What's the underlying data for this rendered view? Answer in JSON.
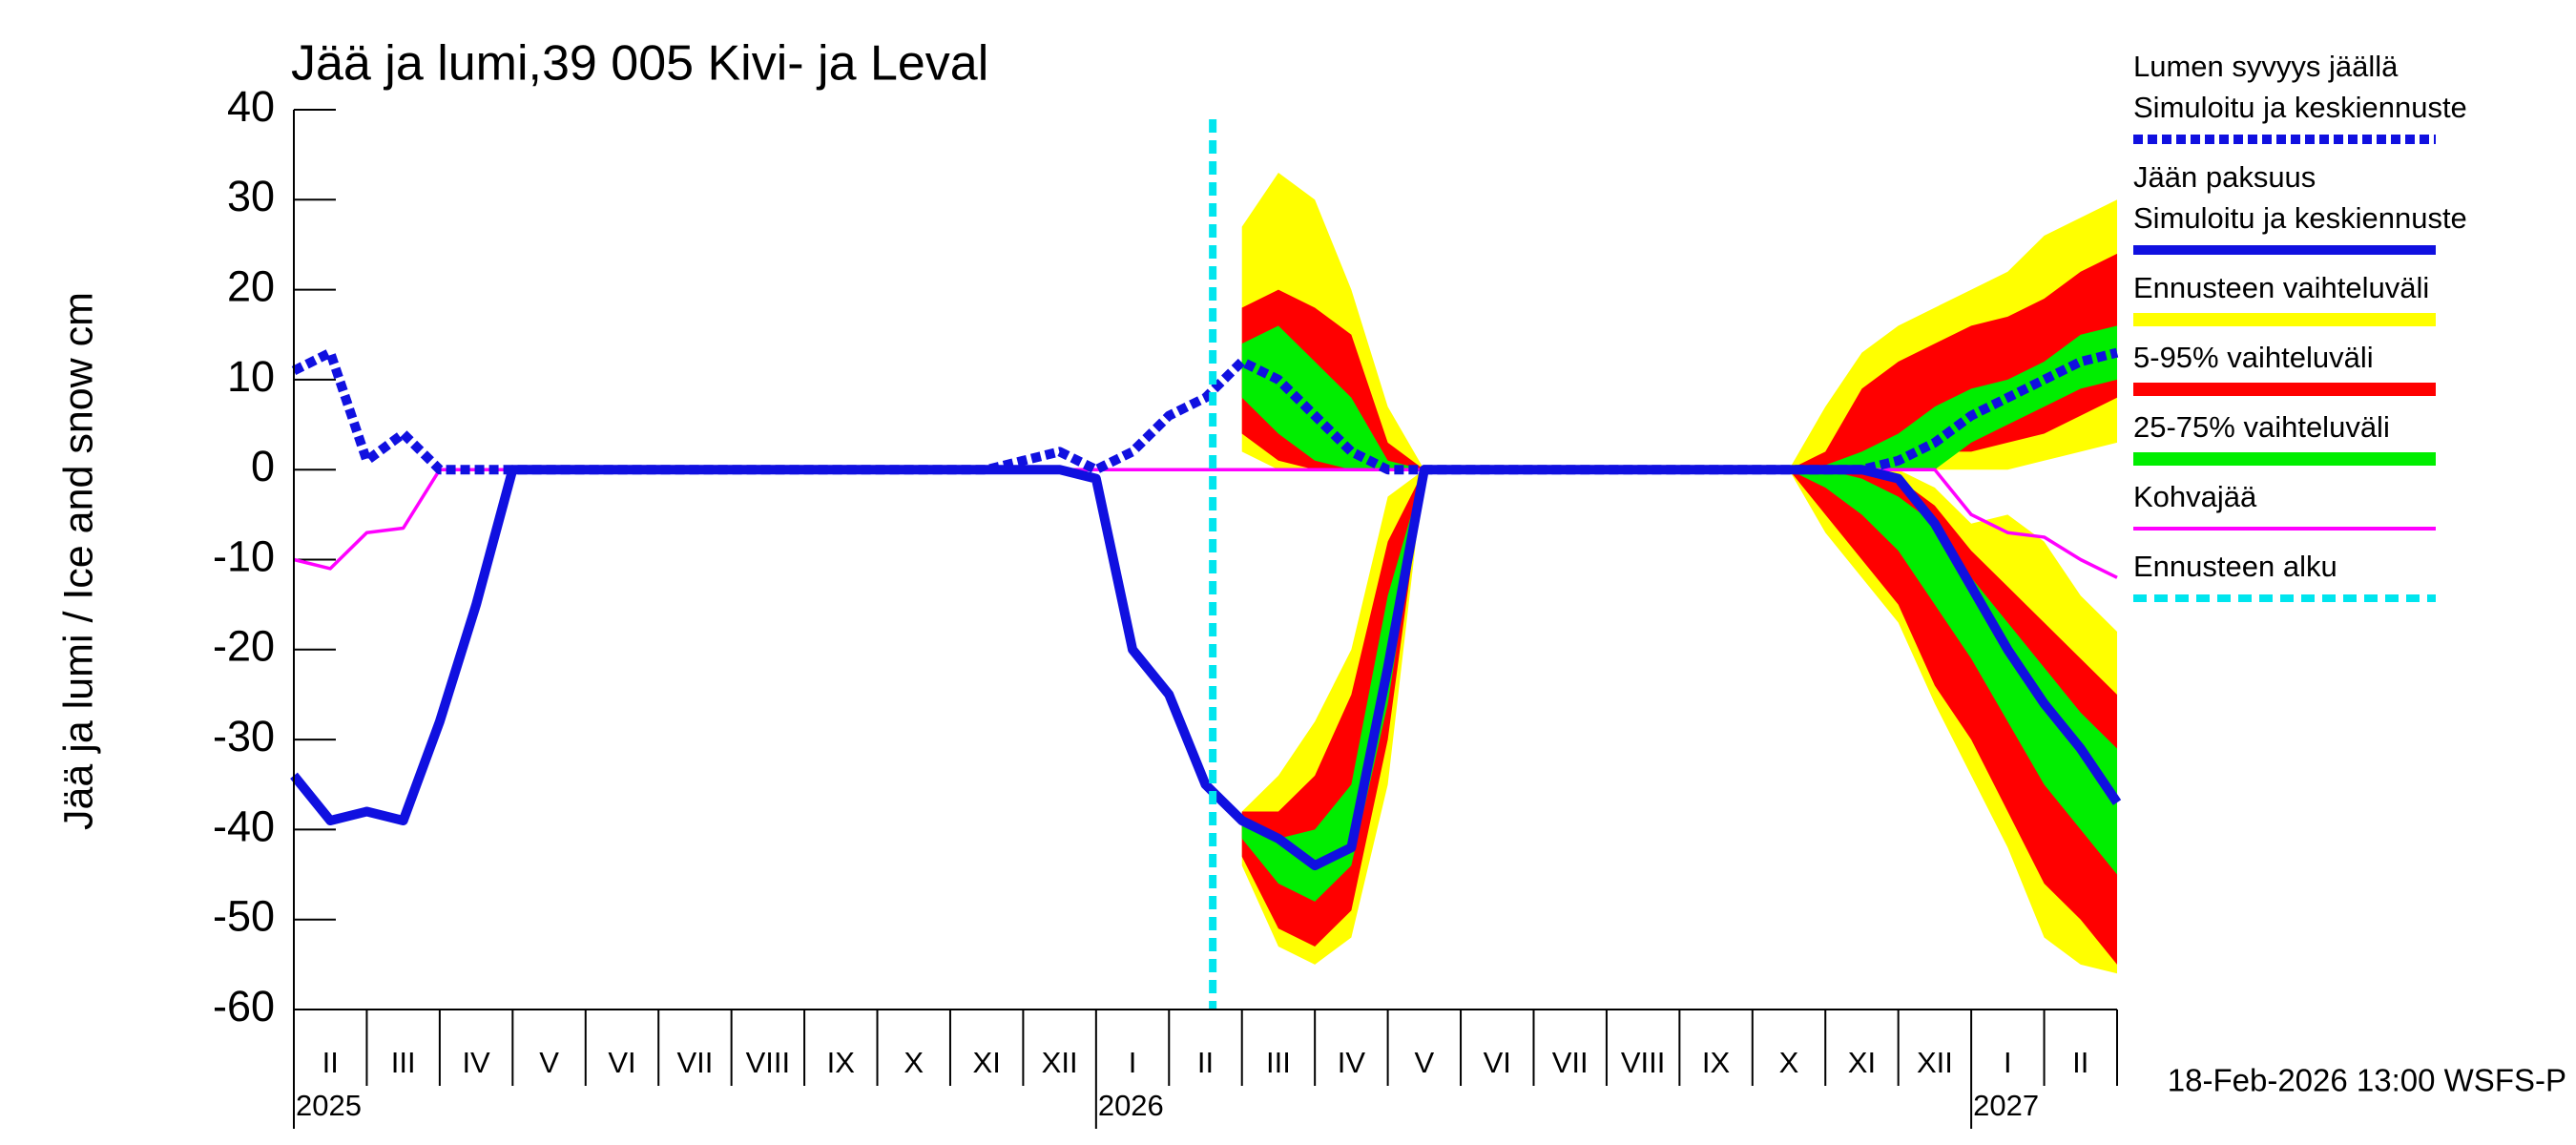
{
  "chart_data": {
    "type": "ice-snow",
    "title": "Jää ja lumi,39 005 Kivi- ja Leval",
    "y_label": "Jää ja lumi / Ice and snow    cm",
    "footer": "18-Feb-2026 13:00 WSFS-P",
    "ylim": [
      -60,
      40
    ],
    "yticks": [
      -60,
      -50,
      -40,
      -30,
      -20,
      -10,
      0,
      10,
      20,
      30,
      40
    ],
    "xlim": [
      0,
      25
    ],
    "categories": [
      "II",
      "III",
      "IV",
      "V",
      "VI",
      "VII",
      "VIII",
      "IX",
      "X",
      "XI",
      "XII",
      "I",
      "II",
      "III",
      "IV",
      "V",
      "VI",
      "VII",
      "VIII",
      "IX",
      "X",
      "XI",
      "XII",
      "I",
      "II"
    ],
    "year_labels": [
      "2025",
      null,
      null,
      null,
      null,
      null,
      null,
      null,
      null,
      null,
      null,
      "2026",
      null,
      null,
      null,
      null,
      null,
      null,
      null,
      null,
      null,
      null,
      null,
      "2027",
      null
    ],
    "x": [
      0,
      0.5,
      1,
      1.5,
      2,
      2.5,
      3,
      3.5,
      4,
      4.5,
      5,
      5.5,
      6,
      6.5,
      7,
      7.5,
      8,
      8.5,
      9,
      9.5,
      10,
      10.5,
      11,
      11.5,
      12,
      12.5,
      13,
      13.5,
      14,
      14.5,
      15,
      15.5,
      16,
      16.5,
      17,
      17.5,
      18,
      18.5,
      19,
      19.5,
      20,
      20.5,
      21,
      21.5,
      22,
      22.5,
      23,
      23.5,
      24,
      24.5,
      25
    ],
    "bands": [
      {
        "name": "Ennusteen vaihteluväli",
        "color": "#ffff00",
        "snow": {
          "low": [
            null,
            null,
            null,
            null,
            null,
            null,
            null,
            null,
            null,
            null,
            null,
            null,
            null,
            null,
            null,
            null,
            null,
            null,
            null,
            null,
            null,
            null,
            null,
            null,
            null,
            null,
            2,
            0,
            0,
            0,
            0,
            0,
            null,
            null,
            null,
            null,
            null,
            null,
            null,
            null,
            null,
            0,
            0,
            0,
            0,
            0,
            0,
            0,
            1,
            2,
            3
          ],
          "high": [
            null,
            null,
            null,
            null,
            null,
            null,
            null,
            null,
            null,
            null,
            null,
            null,
            null,
            null,
            null,
            null,
            null,
            null,
            null,
            null,
            null,
            null,
            null,
            null,
            null,
            null,
            27,
            33,
            30,
            20,
            7,
            0,
            null,
            null,
            null,
            null,
            null,
            null,
            null,
            null,
            null,
            0,
            7,
            13,
            16,
            18,
            20,
            22,
            26,
            28,
            30
          ]
        },
        "ice": {
          "low": [
            null,
            null,
            null,
            null,
            null,
            null,
            null,
            null,
            null,
            null,
            null,
            null,
            null,
            null,
            null,
            null,
            null,
            null,
            null,
            null,
            null,
            null,
            null,
            null,
            null,
            null,
            -44,
            -53,
            -55,
            -52,
            -35,
            0,
            null,
            null,
            null,
            null,
            null,
            null,
            null,
            null,
            null,
            0,
            -7,
            -12,
            -17,
            -26,
            -34,
            -42,
            -52,
            -55,
            -56
          ],
          "high": [
            null,
            null,
            null,
            null,
            null,
            null,
            null,
            null,
            null,
            null,
            null,
            null,
            null,
            null,
            null,
            null,
            null,
            null,
            null,
            null,
            null,
            null,
            null,
            null,
            null,
            null,
            -38,
            -34,
            -28,
            -20,
            -3,
            0,
            null,
            null,
            null,
            null,
            null,
            null,
            null,
            null,
            null,
            0,
            0,
            0,
            0,
            -2,
            -6,
            -5,
            -8,
            -14,
            -18
          ]
        }
      },
      {
        "name": "5-95% vaihteluväli",
        "color": "#ff0000",
        "snow": {
          "low": [
            null,
            null,
            null,
            null,
            null,
            null,
            null,
            null,
            null,
            null,
            null,
            null,
            null,
            null,
            null,
            null,
            null,
            null,
            null,
            null,
            null,
            null,
            null,
            null,
            null,
            null,
            4,
            1,
            0,
            0,
            0,
            0,
            null,
            null,
            null,
            null,
            null,
            null,
            null,
            null,
            null,
            0,
            0,
            0,
            0,
            2,
            2,
            3,
            4,
            6,
            8
          ],
          "high": [
            null,
            null,
            null,
            null,
            null,
            null,
            null,
            null,
            null,
            null,
            null,
            null,
            null,
            null,
            null,
            null,
            null,
            null,
            null,
            null,
            null,
            null,
            null,
            null,
            null,
            null,
            18,
            20,
            18,
            15,
            3,
            0,
            null,
            null,
            null,
            null,
            null,
            null,
            null,
            null,
            null,
            0,
            2,
            9,
            12,
            14,
            16,
            17,
            19,
            22,
            24
          ]
        },
        "ice": {
          "low": [
            null,
            null,
            null,
            null,
            null,
            null,
            null,
            null,
            null,
            null,
            null,
            null,
            null,
            null,
            null,
            null,
            null,
            null,
            null,
            null,
            null,
            null,
            null,
            null,
            null,
            null,
            -43,
            -51,
            -53,
            -49,
            -30,
            0,
            null,
            null,
            null,
            null,
            null,
            null,
            null,
            null,
            null,
            0,
            -5,
            -10,
            -15,
            -24,
            -30,
            -38,
            -46,
            -50,
            -55
          ],
          "high": [
            null,
            null,
            null,
            null,
            null,
            null,
            null,
            null,
            null,
            null,
            null,
            null,
            null,
            null,
            null,
            null,
            null,
            null,
            null,
            null,
            null,
            null,
            null,
            null,
            null,
            null,
            -38,
            -38,
            -34,
            -25,
            -8,
            0,
            null,
            null,
            null,
            null,
            null,
            null,
            null,
            null,
            null,
            0,
            0,
            0,
            -1,
            -4,
            -9,
            -13,
            -17,
            -21,
            -25
          ]
        }
      },
      {
        "name": "25-75% vaihteluväli",
        "color": "#00ee00",
        "snow": {
          "low": [
            null,
            null,
            null,
            null,
            null,
            null,
            null,
            null,
            null,
            null,
            null,
            null,
            null,
            null,
            null,
            null,
            null,
            null,
            null,
            null,
            null,
            null,
            null,
            null,
            null,
            null,
            8,
            4,
            1,
            0,
            0,
            0,
            null,
            null,
            null,
            null,
            null,
            null,
            null,
            null,
            null,
            0,
            0,
            0,
            0,
            0,
            3,
            5,
            7,
            9,
            10
          ],
          "high": [
            null,
            null,
            null,
            null,
            null,
            null,
            null,
            null,
            null,
            null,
            null,
            null,
            null,
            null,
            null,
            null,
            null,
            null,
            null,
            null,
            null,
            null,
            null,
            null,
            null,
            null,
            14,
            16,
            12,
            8,
            1,
            0,
            null,
            null,
            null,
            null,
            null,
            null,
            null,
            null,
            null,
            0,
            0.5,
            2,
            4,
            7,
            9,
            10,
            12,
            15,
            16
          ]
        },
        "ice": {
          "low": [
            null,
            null,
            null,
            null,
            null,
            null,
            null,
            null,
            null,
            null,
            null,
            null,
            null,
            null,
            null,
            null,
            null,
            null,
            null,
            null,
            null,
            null,
            null,
            null,
            null,
            null,
            -41,
            -46,
            -48,
            -44,
            -26,
            0,
            null,
            null,
            null,
            null,
            null,
            null,
            null,
            null,
            null,
            0,
            -2,
            -5,
            -9,
            -15,
            -21,
            -28,
            -35,
            -40,
            -45
          ],
          "high": [
            null,
            null,
            null,
            null,
            null,
            null,
            null,
            null,
            null,
            null,
            null,
            null,
            null,
            null,
            null,
            null,
            null,
            null,
            null,
            null,
            null,
            null,
            null,
            null,
            null,
            null,
            -39,
            -41,
            -40,
            -35,
            -14,
            0,
            null,
            null,
            null,
            null,
            null,
            null,
            null,
            null,
            null,
            0,
            0,
            -1,
            -3,
            -6,
            -12,
            -17,
            -22,
            -27,
            -31
          ]
        }
      }
    ],
    "series": [
      {
        "name": "Lumen syvyys jäällä",
        "subname": "Simuloitu ja keskiennuste",
        "color": "#1010e0",
        "dashed": true,
        "values": [
          11,
          13,
          1,
          4,
          0,
          0,
          0,
          0,
          0,
          0,
          0,
          0,
          0,
          0,
          0,
          0,
          0,
          0,
          0,
          0,
          1,
          2,
          0,
          2,
          6,
          8,
          12,
          10,
          6,
          2,
          0,
          0,
          0,
          0,
          0,
          0,
          0,
          0,
          0,
          0,
          0,
          0,
          0,
          0,
          1,
          3,
          6,
          8,
          10,
          12,
          13
        ]
      },
      {
        "name": "Jään paksuus",
        "subname": "Simuloitu ja keskiennuste",
        "color": "#1010e0",
        "dashed": false,
        "values": [
          -34,
          -39,
          -38,
          -39,
          -28,
          -15,
          0,
          0,
          0,
          0,
          0,
          0,
          0,
          0,
          0,
          0,
          0,
          0,
          0,
          0,
          0,
          0,
          -1,
          -20,
          -25,
          -35,
          -39,
          -41,
          -44,
          -42,
          -22,
          0,
          0,
          0,
          0,
          0,
          0,
          0,
          0,
          0,
          0,
          0,
          0,
          0,
          -1,
          -6,
          -13,
          -20,
          -26,
          -31,
          -37
        ]
      },
      {
        "name": "Kohvajää",
        "color": "#ff00ff",
        "dashed": false,
        "values": [
          -10,
          -11,
          -7,
          -6.5,
          0,
          0,
          0,
          0,
          0,
          0,
          0,
          0,
          0,
          0,
          0,
          0,
          0,
          0,
          0,
          0,
          0,
          0,
          0,
          0,
          0,
          0,
          0,
          0,
          0,
          0,
          0,
          0,
          0,
          0,
          0,
          0,
          0,
          0,
          0,
          0,
          0,
          0,
          0,
          0,
          0,
          0,
          -5,
          -7,
          -7.5,
          -10,
          -12
        ]
      }
    ],
    "forecast_start": 12.6,
    "forecast_name": "Ennusteen alku",
    "forecast_color": "#00e5ee"
  }
}
